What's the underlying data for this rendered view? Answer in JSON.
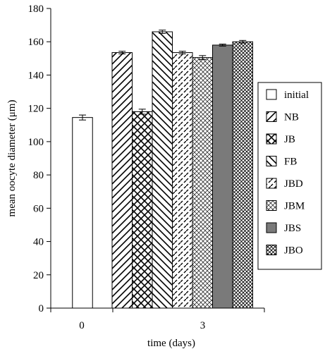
{
  "chart_data": {
    "type": "bar",
    "xlabel": "time  (days)",
    "ylabel": "mean oocyte diameter (μm)",
    "ylim": [
      0,
      180
    ],
    "yticks": [
      0,
      20,
      40,
      60,
      80,
      100,
      120,
      140,
      160,
      180
    ],
    "grid": false,
    "legend_position": "right",
    "groups": [
      {
        "label": "0",
        "bars": [
          {
            "series": "initial",
            "value": 114.5,
            "error": 1.5
          }
        ]
      },
      {
        "label": "3",
        "bars": [
          {
            "series": "NB",
            "value": 153.5,
            "error": 0.8
          },
          {
            "series": "JB",
            "value": 118,
            "error": 1.5
          },
          {
            "series": "FB",
            "value": 166,
            "error": 1.0
          },
          {
            "series": "JBD",
            "value": 153.5,
            "error": 0.8
          },
          {
            "series": "JBM",
            "value": 150.5,
            "error": 1.2
          },
          {
            "series": "JBS",
            "value": 158,
            "error": 0.6
          },
          {
            "series": "JBO",
            "value": 160,
            "error": 0.8
          }
        ]
      }
    ],
    "series": [
      {
        "name": "initial",
        "pattern": "empty",
        "color": "#ffffff"
      },
      {
        "name": "NB",
        "pattern": "forward-diagonal",
        "color": "#000000"
      },
      {
        "name": "JB",
        "pattern": "cross-hatch",
        "color": "#000000"
      },
      {
        "name": "FB",
        "pattern": "backward-diagonal",
        "color": "#000000"
      },
      {
        "name": "JBD",
        "pattern": "dashed-diagonal",
        "color": "#000000"
      },
      {
        "name": "JBM",
        "pattern": "fine-cross-hatch",
        "color": "#000000"
      },
      {
        "name": "JBS",
        "pattern": "solid",
        "color": "#7a7a7a"
      },
      {
        "name": "JBO",
        "pattern": "dense-cross-hatch",
        "color": "#000000"
      }
    ]
  }
}
